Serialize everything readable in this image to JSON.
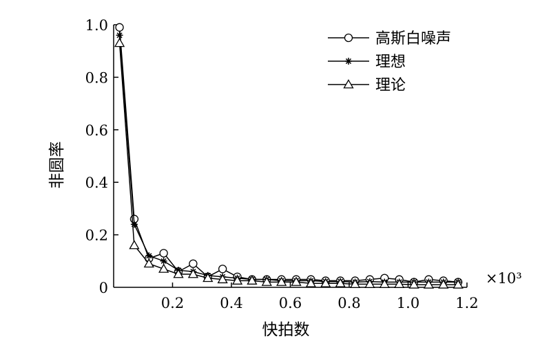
{
  "chart_data": {
    "type": "line",
    "title": "",
    "xlabel": "快拍数",
    "ylabel": "非圆率",
    "x_multiplier": "×10³",
    "xlim": [
      0,
      1.2
    ],
    "ylim": [
      0,
      1.0
    ],
    "x_ticks": [
      "0.2",
      "0.4",
      "0.6",
      "0.8",
      "1.0",
      "1.2"
    ],
    "y_ticks": [
      "0",
      "0.2",
      "0.4",
      "0.6",
      "0.8",
      "1.0"
    ],
    "grid": false,
    "legend_position": "top-right",
    "x": [
      0.02,
      0.07,
      0.12,
      0.17,
      0.22,
      0.27,
      0.32,
      0.37,
      0.42,
      0.47,
      0.52,
      0.57,
      0.62,
      0.67,
      0.72,
      0.77,
      0.82,
      0.87,
      0.92,
      0.97,
      1.02,
      1.07,
      1.12,
      1.17
    ],
    "series": [
      {
        "name": "高斯白噪声",
        "marker": "circle",
        "values": [
          0.99,
          0.26,
          0.11,
          0.13,
          0.06,
          0.09,
          0.04,
          0.07,
          0.04,
          0.03,
          0.03,
          0.03,
          0.03,
          0.03,
          0.025,
          0.025,
          0.025,
          0.03,
          0.035,
          0.03,
          0.02,
          0.03,
          0.025,
          0.02
        ]
      },
      {
        "name": "理想",
        "marker": "star",
        "values": [
          0.96,
          0.24,
          0.12,
          0.1,
          0.065,
          0.06,
          0.045,
          0.04,
          0.035,
          0.03,
          0.03,
          0.025,
          0.025,
          0.025,
          0.022,
          0.022,
          0.02,
          0.022,
          0.02,
          0.02,
          0.02,
          0.02,
          0.02,
          0.02
        ]
      },
      {
        "name": "理论",
        "marker": "triangle",
        "values": [
          0.93,
          0.16,
          0.09,
          0.07,
          0.05,
          0.05,
          0.035,
          0.03,
          0.025,
          0.025,
          0.02,
          0.02,
          0.02,
          0.015,
          0.015,
          0.015,
          0.012,
          0.012,
          0.012,
          0.012,
          0.01,
          0.01,
          0.01,
          0.01
        ]
      }
    ]
  }
}
